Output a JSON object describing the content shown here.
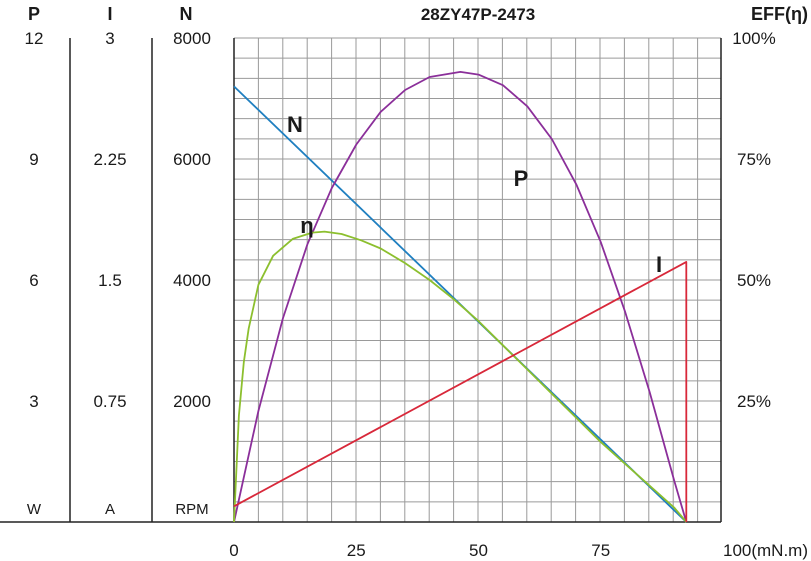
{
  "chart_data": {
    "type": "line",
    "title": "28ZY47P-2473",
    "xlabel": "100(mN.m)",
    "x_ticks": [
      "0",
      "25",
      "50",
      "75"
    ],
    "xlim": [
      0,
      100
    ],
    "grid": true,
    "axes": {
      "P": {
        "header": "P",
        "unit": "W",
        "ticks": [
          "3",
          "6",
          "9",
          "12"
        ],
        "range": [
          0,
          16
        ]
      },
      "I": {
        "header": "I",
        "unit": "A",
        "ticks": [
          "0.75",
          "1.5",
          "2.25",
          "3"
        ],
        "range": [
          0,
          4
        ]
      },
      "N": {
        "header": "N",
        "unit": "RPM",
        "ticks": [
          "2000",
          "4000",
          "6000",
          "8000"
        ],
        "range": [
          0,
          8000
        ]
      },
      "EFF": {
        "header": "EFF(η)",
        "ticks": [
          "25%",
          "50%",
          "75%",
          "100%"
        ],
        "range": [
          0,
          100
        ]
      }
    },
    "series": [
      {
        "name": "N",
        "axis": "N",
        "color": "#1f7fc0",
        "x": [
          0,
          92.5
        ],
        "y": [
          7200,
          0
        ]
      },
      {
        "name": "P",
        "axis": "P",
        "color": "#8b2f9a",
        "x": [
          0,
          5,
          10,
          15,
          20,
          25,
          30,
          35,
          40,
          46.3,
          50,
          55,
          60,
          65,
          70,
          75,
          80,
          85,
          90,
          92.5
        ],
        "y": [
          0,
          3.67,
          6.73,
          9.18,
          11.04,
          12.48,
          13.56,
          14.28,
          14.71,
          14.88,
          14.79,
          14.44,
          13.74,
          12.66,
          11.16,
          9.25,
          6.94,
          4.3,
          1.38,
          0
        ]
      },
      {
        "name": "η",
        "axis": "EFF",
        "color": "#8cbf2e",
        "x": [
          0,
          1,
          2,
          3,
          5,
          8,
          12,
          16,
          18.5,
          22,
          26,
          30,
          35,
          40,
          45,
          50,
          55,
          60,
          65,
          70,
          75,
          80,
          85,
          90,
          92.5
        ],
        "y": [
          0,
          22,
          33,
          40,
          49,
          55,
          58.5,
          59.8,
          60,
          59.5,
          58.2,
          56.5,
          53.5,
          50,
          46,
          41.5,
          36.5,
          31.5,
          26.5,
          21.5,
          16.5,
          12,
          7.5,
          3,
          0
        ]
      },
      {
        "name": "I",
        "axis": "I",
        "color": "#d8283a",
        "x": [
          0,
          92.5,
          92.5
        ],
        "y": [
          0.13,
          2.15,
          0
        ]
      }
    ],
    "curve_labels": [
      "N",
      "P",
      "η",
      "I"
    ]
  }
}
